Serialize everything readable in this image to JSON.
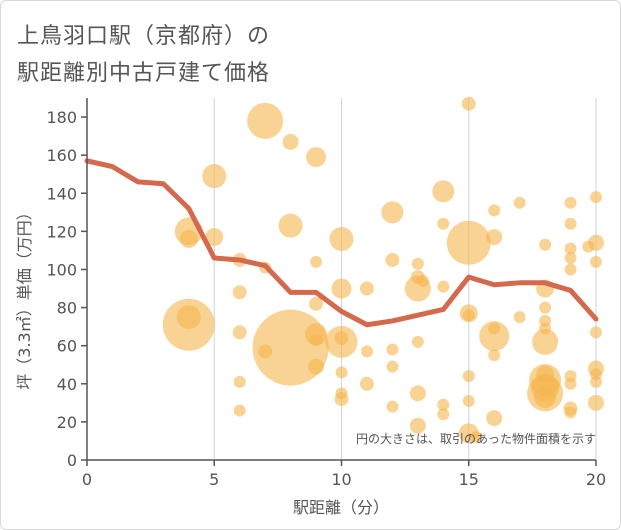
{
  "title_lines": [
    "上鳥羽口駅（京都府）の",
    "駅距離別中古戸建て価格"
  ],
  "chart_data": {
    "type": "scatter",
    "xlabel": "駅距離（分）",
    "ylabel": "坪（3.3㎡）単価（万円）",
    "xlim": [
      0,
      20
    ],
    "ylim": [
      0,
      190
    ],
    "xticks": [
      0,
      5,
      10,
      15,
      20
    ],
    "yticks": [
      0,
      20,
      40,
      60,
      80,
      100,
      120,
      140,
      160,
      180
    ],
    "grid": "x",
    "annotation": "円の大きさは、取引のあった物件面積を示す",
    "colors": {
      "bubble": "#f5b54c",
      "line": "#d4694e",
      "axis": "#555555",
      "grid": "#c9d6e3"
    },
    "bubbles": [
      {
        "x": 7,
        "y": 178,
        "s": 18
      },
      {
        "x": 8,
        "y": 167,
        "s": 8
      },
      {
        "x": 9,
        "y": 159,
        "s": 10
      },
      {
        "x": 5,
        "y": 149,
        "s": 12
      },
      {
        "x": 15,
        "y": 187,
        "s": 7
      },
      {
        "x": 14,
        "y": 141,
        "s": 11
      },
      {
        "x": 17,
        "y": 135,
        "s": 6
      },
      {
        "x": 19,
        "y": 135,
        "s": 6
      },
      {
        "x": 20,
        "y": 138,
        "s": 6
      },
      {
        "x": 16,
        "y": 131,
        "s": 6
      },
      {
        "x": 12,
        "y": 130,
        "s": 11
      },
      {
        "x": 14,
        "y": 124,
        "s": 6
      },
      {
        "x": 19,
        "y": 124,
        "s": 6
      },
      {
        "x": 4,
        "y": 120,
        "s": 14
      },
      {
        "x": 4,
        "y": 116,
        "s": 9
      },
      {
        "x": 5,
        "y": 117,
        "s": 9
      },
      {
        "x": 8,
        "y": 123,
        "s": 12
      },
      {
        "x": 10,
        "y": 116,
        "s": 12
      },
      {
        "x": 15,
        "y": 114,
        "s": 22
      },
      {
        "x": 16,
        "y": 117,
        "s": 8
      },
      {
        "x": 18,
        "y": 113,
        "s": 6
      },
      {
        "x": 20,
        "y": 114,
        "s": 8
      },
      {
        "x": 19.7,
        "y": 112,
        "s": 6
      },
      {
        "x": 19,
        "y": 111,
        "s": 6
      },
      {
        "x": 19,
        "y": 106,
        "s": 6
      },
      {
        "x": 20,
        "y": 104,
        "s": 6
      },
      {
        "x": 6,
        "y": 105,
        "s": 7
      },
      {
        "x": 7,
        "y": 101,
        "s": 6
      },
      {
        "x": 9,
        "y": 104,
        "s": 6
      },
      {
        "x": 12,
        "y": 105,
        "s": 7
      },
      {
        "x": 13,
        "y": 103,
        "s": 6
      },
      {
        "x": 13,
        "y": 96,
        "s": 7
      },
      {
        "x": 19,
        "y": 100,
        "s": 6
      },
      {
        "x": 13,
        "y": 90,
        "s": 13
      },
      {
        "x": 13.2,
        "y": 94,
        "s": 6
      },
      {
        "x": 10,
        "y": 90,
        "s": 10
      },
      {
        "x": 11,
        "y": 90,
        "s": 7
      },
      {
        "x": 14,
        "y": 91,
        "s": 6
      },
      {
        "x": 18,
        "y": 90,
        "s": 9
      },
      {
        "x": 6,
        "y": 88,
        "s": 7
      },
      {
        "x": 9,
        "y": 82,
        "s": 7
      },
      {
        "x": 18,
        "y": 80,
        "s": 6
      },
      {
        "x": 15,
        "y": 77,
        "s": 9
      },
      {
        "x": 15,
        "y": 76,
        "s": 6
      },
      {
        "x": 17,
        "y": 75,
        "s": 6
      },
      {
        "x": 4,
        "y": 71,
        "s": 26
      },
      {
        "x": 4,
        "y": 75,
        "s": 12
      },
      {
        "x": 18,
        "y": 73,
        "s": 6
      },
      {
        "x": 18,
        "y": 69,
        "s": 6
      },
      {
        "x": 16,
        "y": 69,
        "s": 6
      },
      {
        "x": 6,
        "y": 67,
        "s": 7
      },
      {
        "x": 8,
        "y": 59,
        "s": 38
      },
      {
        "x": 9,
        "y": 66,
        "s": 11
      },
      {
        "x": 9,
        "y": 63,
        "s": 6
      },
      {
        "x": 10,
        "y": 62,
        "s": 16
      },
      {
        "x": 10,
        "y": 64,
        "s": 7
      },
      {
        "x": 16,
        "y": 65,
        "s": 15
      },
      {
        "x": 18,
        "y": 62,
        "s": 13
      },
      {
        "x": 13,
        "y": 62,
        "s": 6
      },
      {
        "x": 20,
        "y": 67,
        "s": 6
      },
      {
        "x": 7,
        "y": 57,
        "s": 7
      },
      {
        "x": 11,
        "y": 57,
        "s": 6
      },
      {
        "x": 12,
        "y": 58,
        "s": 6
      },
      {
        "x": 16,
        "y": 55,
        "s": 6
      },
      {
        "x": 9,
        "y": 49,
        "s": 8
      },
      {
        "x": 10,
        "y": 46,
        "s": 6
      },
      {
        "x": 12,
        "y": 49,
        "s": 6
      },
      {
        "x": 15,
        "y": 44,
        "s": 6
      },
      {
        "x": 18,
        "y": 45,
        "s": 9
      },
      {
        "x": 18,
        "y": 42,
        "s": 16
      },
      {
        "x": 18,
        "y": 38,
        "s": 14
      },
      {
        "x": 18,
        "y": 35,
        "s": 18
      },
      {
        "x": 18,
        "y": 33,
        "s": 11
      },
      {
        "x": 19,
        "y": 44,
        "s": 6
      },
      {
        "x": 19,
        "y": 40,
        "s": 6
      },
      {
        "x": 20,
        "y": 48,
        "s": 8
      },
      {
        "x": 20,
        "y": 45,
        "s": 6
      },
      {
        "x": 20,
        "y": 41,
        "s": 6
      },
      {
        "x": 6,
        "y": 41,
        "s": 6
      },
      {
        "x": 11,
        "y": 40,
        "s": 7
      },
      {
        "x": 13,
        "y": 35,
        "s": 8
      },
      {
        "x": 10,
        "y": 35,
        "s": 6
      },
      {
        "x": 10,
        "y": 32,
        "s": 7
      },
      {
        "x": 15,
        "y": 31,
        "s": 6
      },
      {
        "x": 20,
        "y": 30,
        "s": 8
      },
      {
        "x": 14,
        "y": 29,
        "s": 6
      },
      {
        "x": 12,
        "y": 28,
        "s": 6
      },
      {
        "x": 19,
        "y": 27,
        "s": 7
      },
      {
        "x": 19,
        "y": 25,
        "s": 6
      },
      {
        "x": 6,
        "y": 26,
        "s": 6
      },
      {
        "x": 14,
        "y": 24,
        "s": 6
      },
      {
        "x": 16,
        "y": 22,
        "s": 8
      },
      {
        "x": 13,
        "y": 18,
        "s": 8
      },
      {
        "x": 15,
        "y": 14,
        "s": 10
      },
      {
        "x": 15.3,
        "y": 12,
        "s": 6
      }
    ],
    "series": [
      {
        "x": [
          0,
          1,
          2,
          3,
          4,
          5,
          6,
          7,
          8,
          9,
          10,
          11,
          12,
          13,
          14,
          15,
          16,
          17,
          18,
          19,
          20
        ],
        "values": [
          157,
          154,
          146,
          145,
          132,
          106,
          105,
          102,
          88,
          88,
          78,
          71,
          73,
          76,
          79,
          96,
          92,
          93,
          93,
          89,
          74
        ]
      }
    ]
  }
}
